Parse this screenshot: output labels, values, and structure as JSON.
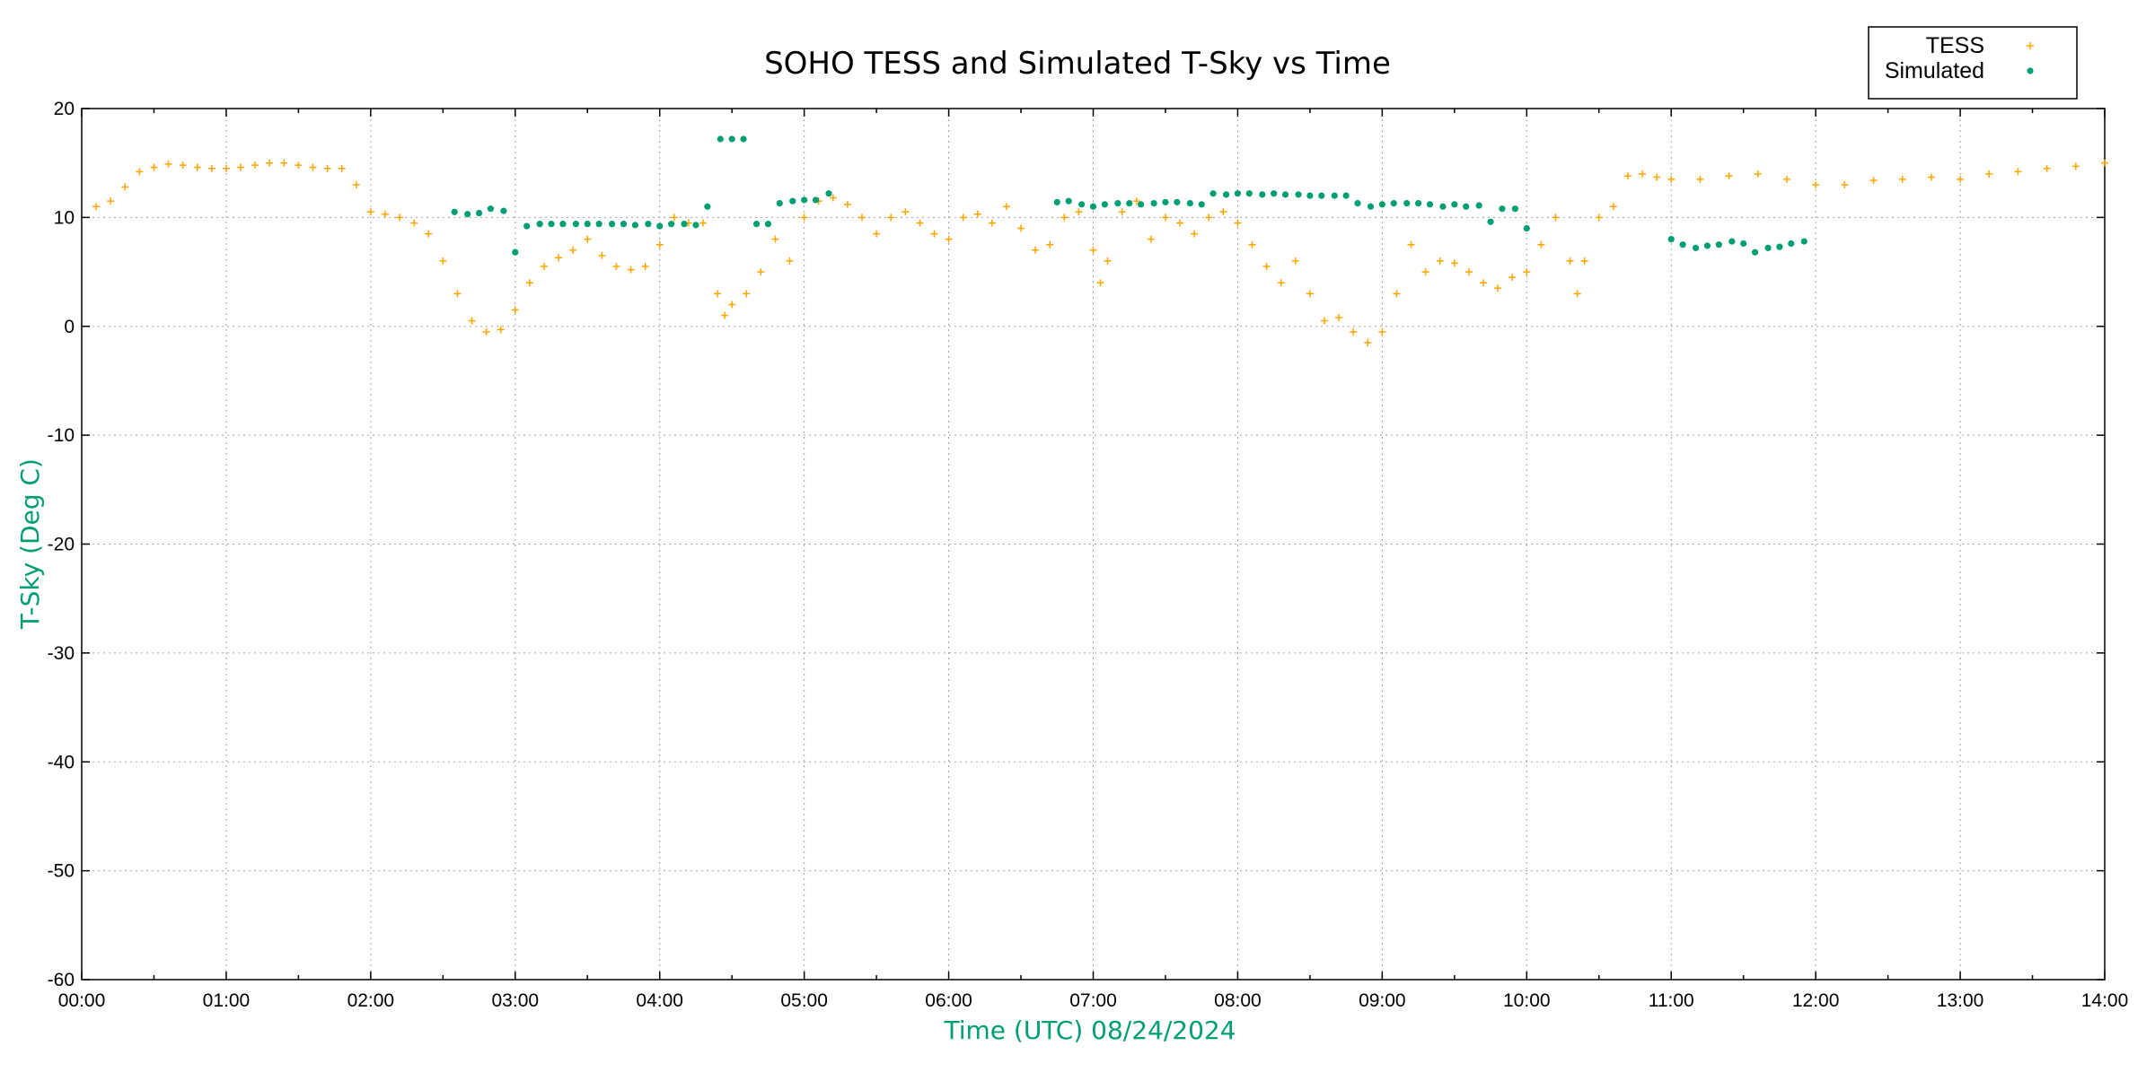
{
  "chart_data": {
    "type": "scatter",
    "title": "SOHO TESS and Simulated T-Sky vs Time",
    "xlabel": "Time (UTC)   08/24/2024",
    "ylabel": "T-Sky (Deg C)",
    "x_unit": "hours (UTC)",
    "xlim": [
      0,
      14
    ],
    "ylim": [
      -60,
      20
    ],
    "x_ticks": [
      {
        "value": 0,
        "label": "00:00"
      },
      {
        "value": 1,
        "label": "01:00"
      },
      {
        "value": 2,
        "label": "02:00"
      },
      {
        "value": 3,
        "label": "03:00"
      },
      {
        "value": 4,
        "label": "04:00"
      },
      {
        "value": 5,
        "label": "05:00"
      },
      {
        "value": 6,
        "label": "06:00"
      },
      {
        "value": 7,
        "label": "07:00"
      },
      {
        "value": 8,
        "label": "08:00"
      },
      {
        "value": 9,
        "label": "09:00"
      },
      {
        "value": 10,
        "label": "10:00"
      },
      {
        "value": 11,
        "label": "11:00"
      },
      {
        "value": 12,
        "label": "12:00"
      },
      {
        "value": 13,
        "label": "13:00"
      },
      {
        "value": 14,
        "label": "14:00"
      }
    ],
    "y_ticks": [
      {
        "value": 20,
        "label": "20"
      },
      {
        "value": 10,
        "label": "10"
      },
      {
        "value": 0,
        "label": "0"
      },
      {
        "value": -10,
        "label": "-10"
      },
      {
        "value": -20,
        "label": "-20"
      },
      {
        "value": -30,
        "label": "-30"
      },
      {
        "value": -40,
        "label": "-40"
      },
      {
        "value": -50,
        "label": "-50"
      },
      {
        "value": -60,
        "label": "-60"
      }
    ],
    "grid": true,
    "legend_position": "top-right",
    "series": [
      {
        "name": "TESS",
        "marker": "plus",
        "color": "#ffa500",
        "points": [
          [
            0.1,
            11
          ],
          [
            0.2,
            11.5
          ],
          [
            0.3,
            12.8
          ],
          [
            0.4,
            14.2
          ],
          [
            0.5,
            14.6
          ],
          [
            0.6,
            14.9
          ],
          [
            0.7,
            14.8
          ],
          [
            0.8,
            14.6
          ],
          [
            0.9,
            14.5
          ],
          [
            1.0,
            14.5
          ],
          [
            1.1,
            14.6
          ],
          [
            1.2,
            14.8
          ],
          [
            1.3,
            15.0
          ],
          [
            1.4,
            15.0
          ],
          [
            1.5,
            14.8
          ],
          [
            1.6,
            14.6
          ],
          [
            1.7,
            14.5
          ],
          [
            1.8,
            14.5
          ],
          [
            1.9,
            13.0
          ],
          [
            2.0,
            10.5
          ],
          [
            2.1,
            10.3
          ],
          [
            2.2,
            10.0
          ],
          [
            2.3,
            9.5
          ],
          [
            2.4,
            8.5
          ],
          [
            2.5,
            6.0
          ],
          [
            2.6,
            3.0
          ],
          [
            2.7,
            0.5
          ],
          [
            2.8,
            -0.5
          ],
          [
            2.9,
            -0.3
          ],
          [
            3.0,
            1.5
          ],
          [
            3.1,
            4.0
          ],
          [
            3.2,
            5.5
          ],
          [
            3.3,
            6.3
          ],
          [
            3.4,
            7.0
          ],
          [
            3.5,
            8.0
          ],
          [
            3.6,
            6.5
          ],
          [
            3.7,
            5.5
          ],
          [
            3.8,
            5.2
          ],
          [
            3.9,
            5.5
          ],
          [
            4.0,
            7.5
          ],
          [
            4.1,
            10.0
          ],
          [
            4.2,
            9.5
          ],
          [
            4.3,
            9.5
          ],
          [
            4.4,
            3.0
          ],
          [
            4.45,
            1.0
          ],
          [
            4.5,
            2.0
          ],
          [
            4.6,
            3.0
          ],
          [
            4.7,
            5.0
          ],
          [
            4.8,
            8.0
          ],
          [
            4.9,
            6.0
          ],
          [
            5.0,
            10.0
          ],
          [
            5.1,
            11.5
          ],
          [
            5.2,
            11.8
          ],
          [
            5.3,
            11.2
          ],
          [
            5.4,
            10.0
          ],
          [
            5.5,
            8.5
          ],
          [
            5.6,
            10.0
          ],
          [
            5.7,
            10.5
          ],
          [
            5.8,
            9.5
          ],
          [
            5.9,
            8.5
          ],
          [
            6.0,
            8.0
          ],
          [
            6.1,
            10.0
          ],
          [
            6.2,
            10.3
          ],
          [
            6.3,
            9.5
          ],
          [
            6.4,
            11.0
          ],
          [
            6.5,
            9.0
          ],
          [
            6.6,
            7.0
          ],
          [
            6.7,
            7.5
          ],
          [
            6.8,
            10.0
          ],
          [
            6.9,
            10.5
          ],
          [
            7.0,
            7.0
          ],
          [
            7.05,
            4.0
          ],
          [
            7.1,
            6.0
          ],
          [
            7.2,
            10.5
          ],
          [
            7.3,
            11.5
          ],
          [
            7.4,
            8.0
          ],
          [
            7.5,
            10.0
          ],
          [
            7.6,
            9.5
          ],
          [
            7.7,
            8.5
          ],
          [
            7.8,
            10.0
          ],
          [
            7.9,
            10.5
          ],
          [
            8.0,
            9.5
          ],
          [
            8.1,
            7.5
          ],
          [
            8.2,
            5.5
          ],
          [
            8.3,
            4.0
          ],
          [
            8.4,
            6.0
          ],
          [
            8.5,
            3.0
          ],
          [
            8.6,
            0.5
          ],
          [
            8.7,
            0.8
          ],
          [
            8.8,
            -0.5
          ],
          [
            8.9,
            -1.5
          ],
          [
            9.0,
            -0.5
          ],
          [
            9.1,
            3.0
          ],
          [
            9.2,
            7.5
          ],
          [
            9.3,
            5.0
          ],
          [
            9.4,
            6.0
          ],
          [
            9.5,
            5.8
          ],
          [
            9.6,
            5.0
          ],
          [
            9.7,
            4.0
          ],
          [
            9.8,
            3.5
          ],
          [
            9.9,
            4.5
          ],
          [
            10.0,
            5.0
          ],
          [
            10.1,
            7.5
          ],
          [
            10.2,
            10.0
          ],
          [
            10.3,
            6.0
          ],
          [
            10.35,
            3.0
          ],
          [
            10.4,
            6.0
          ],
          [
            10.5,
            10.0
          ],
          [
            10.6,
            11.0
          ],
          [
            10.7,
            13.8
          ],
          [
            10.8,
            14.0
          ],
          [
            10.9,
            13.7
          ],
          [
            11.0,
            13.5
          ],
          [
            11.2,
            13.5
          ],
          [
            11.4,
            13.8
          ],
          [
            11.6,
            14.0
          ],
          [
            11.8,
            13.5
          ],
          [
            12.0,
            13.0
          ],
          [
            12.2,
            13.0
          ],
          [
            12.4,
            13.4
          ],
          [
            12.6,
            13.5
          ],
          [
            12.8,
            13.7
          ],
          [
            13.0,
            13.5
          ],
          [
            13.2,
            14.0
          ],
          [
            13.4,
            14.2
          ],
          [
            13.6,
            14.5
          ],
          [
            13.8,
            14.7
          ],
          [
            14.0,
            15.0
          ]
        ]
      },
      {
        "name": "Simulated",
        "marker": "dot",
        "color": "#009e73",
        "points": [
          [
            2.58,
            10.5
          ],
          [
            2.67,
            10.3
          ],
          [
            2.75,
            10.4
          ],
          [
            2.83,
            10.8
          ],
          [
            2.92,
            10.6
          ],
          [
            3.0,
            6.8
          ],
          [
            3.08,
            9.2
          ],
          [
            3.17,
            9.4
          ],
          [
            3.25,
            9.4
          ],
          [
            3.33,
            9.4
          ],
          [
            3.42,
            9.4
          ],
          [
            3.5,
            9.4
          ],
          [
            3.58,
            9.4
          ],
          [
            3.67,
            9.4
          ],
          [
            3.75,
            9.4
          ],
          [
            3.83,
            9.3
          ],
          [
            3.92,
            9.4
          ],
          [
            4.0,
            9.2
          ],
          [
            4.08,
            9.4
          ],
          [
            4.17,
            9.4
          ],
          [
            4.25,
            9.3
          ],
          [
            4.33,
            11.0
          ],
          [
            4.42,
            17.2
          ],
          [
            4.5,
            17.2
          ],
          [
            4.58,
            17.2
          ],
          [
            4.67,
            9.4
          ],
          [
            4.75,
            9.4
          ],
          [
            4.83,
            11.3
          ],
          [
            4.92,
            11.5
          ],
          [
            5.0,
            11.6
          ],
          [
            5.08,
            11.6
          ],
          [
            5.17,
            12.2
          ],
          [
            6.75,
            11.4
          ],
          [
            6.83,
            11.5
          ],
          [
            6.92,
            11.2
          ],
          [
            7.0,
            11.0
          ],
          [
            7.08,
            11.2
          ],
          [
            7.17,
            11.3
          ],
          [
            7.25,
            11.3
          ],
          [
            7.33,
            11.2
          ],
          [
            7.42,
            11.3
          ],
          [
            7.5,
            11.4
          ],
          [
            7.58,
            11.4
          ],
          [
            7.67,
            11.3
          ],
          [
            7.75,
            11.2
          ],
          [
            7.83,
            12.2
          ],
          [
            7.92,
            12.1
          ],
          [
            8.0,
            12.2
          ],
          [
            8.08,
            12.2
          ],
          [
            8.17,
            12.1
          ],
          [
            8.25,
            12.2
          ],
          [
            8.33,
            12.1
          ],
          [
            8.42,
            12.1
          ],
          [
            8.5,
            12.0
          ],
          [
            8.58,
            12.0
          ],
          [
            8.67,
            12.0
          ],
          [
            8.75,
            12.0
          ],
          [
            8.83,
            11.3
          ],
          [
            8.92,
            11.0
          ],
          [
            9.0,
            11.2
          ],
          [
            9.08,
            11.3
          ],
          [
            9.17,
            11.3
          ],
          [
            9.25,
            11.3
          ],
          [
            9.33,
            11.2
          ],
          [
            9.42,
            11.0
          ],
          [
            9.5,
            11.2
          ],
          [
            9.58,
            11.0
          ],
          [
            9.67,
            11.1
          ],
          [
            9.75,
            9.6
          ],
          [
            9.83,
            10.8
          ],
          [
            9.92,
            10.8
          ],
          [
            10.0,
            9.0
          ],
          [
            11.0,
            8.0
          ],
          [
            11.08,
            7.5
          ],
          [
            11.17,
            7.2
          ],
          [
            11.25,
            7.4
          ],
          [
            11.33,
            7.5
          ],
          [
            11.42,
            7.8
          ],
          [
            11.5,
            7.6
          ],
          [
            11.58,
            6.8
          ],
          [
            11.67,
            7.2
          ],
          [
            11.75,
            7.3
          ],
          [
            11.83,
            7.6
          ],
          [
            11.92,
            7.8
          ]
        ]
      }
    ]
  }
}
